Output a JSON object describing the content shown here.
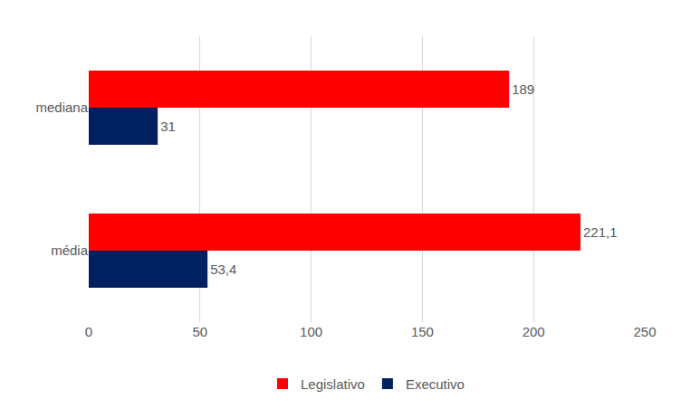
{
  "chart_data": {
    "type": "bar",
    "orientation": "horizontal",
    "categories": [
      "mediana",
      "média"
    ],
    "series": [
      {
        "name": "Legislativo",
        "color": "#FF0000",
        "values": [
          189,
          221.1
        ],
        "value_labels": [
          "189",
          "221,1"
        ]
      },
      {
        "name": "Executivo",
        "color": "#002060",
        "values": [
          31,
          53.4
        ],
        "value_labels": [
          "31",
          "53,4"
        ]
      }
    ],
    "xlim": [
      0,
      250
    ],
    "xticks": [
      0,
      50,
      100,
      150,
      200,
      250
    ],
    "grid": true,
    "data_labels": true,
    "legend": "bottom"
  }
}
